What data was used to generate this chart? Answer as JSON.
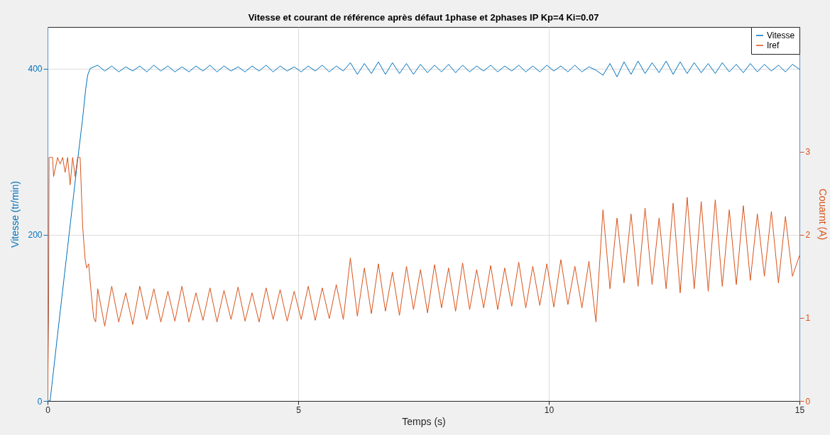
{
  "chart_data": {
    "type": "line",
    "title": "Vitesse et courant de référence  après défaut 1phase et 2phases IP Kp=4 Ki=0.07",
    "xlabel": "Temps (s)",
    "ylabel": "Vitesse (tr/min)",
    "y2label": "Couarnt (A)",
    "xlim": [
      0,
      15
    ],
    "xticks": [
      0,
      5,
      10,
      15
    ],
    "ylim": [
      0,
      450
    ],
    "yticks": [
      0,
      200,
      400
    ],
    "y2lim": [
      0,
      4.5
    ],
    "y2ticks": [
      0,
      1,
      2,
      3
    ],
    "grid": true,
    "legend": "top right",
    "series": [
      {
        "name": "Vitesse",
        "color": "#0072bd",
        "x": [
          0,
          0.05,
          0.2,
          0.4,
          0.6,
          0.7,
          0.76,
          0.8,
          0.85,
          1.0,
          1.14,
          1.28,
          1.42,
          1.56,
          1.7,
          1.84,
          1.98,
          2.12,
          2.26,
          2.4,
          2.54,
          2.68,
          2.82,
          2.96,
          3.1,
          3.24,
          3.38,
          3.52,
          3.66,
          3.8,
          3.94,
          4.08,
          4.22,
          4.36,
          4.5,
          4.64,
          4.78,
          4.92,
          5.06,
          5.2,
          5.34,
          5.48,
          5.62,
          5.76,
          5.9,
          6.04,
          6.18,
          6.32,
          6.46,
          6.6,
          6.74,
          6.88,
          7.02,
          7.16,
          7.3,
          7.44,
          7.58,
          7.72,
          7.86,
          8.0,
          8.14,
          8.28,
          8.42,
          8.56,
          8.7,
          8.84,
          8.98,
          9.12,
          9.26,
          9.4,
          9.54,
          9.68,
          9.82,
          9.96,
          10.1,
          10.24,
          10.38,
          10.52,
          10.66,
          10.8,
          10.94,
          11.08,
          11.22,
          11.36,
          11.5,
          11.64,
          11.78,
          11.92,
          12.06,
          12.2,
          12.34,
          12.48,
          12.62,
          12.76,
          12.9,
          13.04,
          13.18,
          13.32,
          13.46,
          13.6,
          13.74,
          13.88,
          14.02,
          14.16,
          14.3,
          14.44,
          14.58,
          14.72,
          14.86,
          15.0
        ],
        "values": [
          0,
          0,
          80,
          185,
          290,
          340,
          375,
          392,
          400,
          404,
          397,
          403,
          396,
          402,
          397,
          403,
          396,
          404,
          397,
          403,
          396,
          402,
          396,
          403,
          397,
          404,
          396,
          403,
          397,
          402,
          396,
          403,
          397,
          404,
          396,
          403,
          397,
          402,
          396,
          403,
          397,
          404,
          396,
          403,
          397,
          407,
          393,
          406,
          394,
          408,
          393,
          407,
          394,
          406,
          393,
          405,
          395,
          404,
          396,
          405,
          395,
          404,
          396,
          403,
          397,
          404,
          396,
          403,
          397,
          404,
          396,
          403,
          396,
          404,
          397,
          403,
          396,
          404,
          396,
          402,
          398,
          392,
          406,
          390,
          408,
          393,
          409,
          394,
          407,
          395,
          409,
          393,
          408,
          394,
          407,
          395,
          406,
          394,
          407,
          396,
          405,
          395,
          406,
          396,
          405,
          397,
          404,
          396,
          405,
          399
        ]
      },
      {
        "name": "Iref",
        "color": "#d95319",
        "axis": "y2",
        "x": [
          0,
          0.02,
          0.03,
          0.1,
          0.12,
          0.2,
          0.25,
          0.3,
          0.35,
          0.4,
          0.45,
          0.5,
          0.55,
          0.6,
          0.65,
          0.7,
          0.75,
          0.78,
          0.82,
          0.87,
          0.92,
          0.96,
          1.0,
          1.14,
          1.28,
          1.42,
          1.56,
          1.7,
          1.84,
          1.98,
          2.12,
          2.26,
          2.4,
          2.54,
          2.68,
          2.82,
          2.96,
          3.1,
          3.24,
          3.38,
          3.52,
          3.66,
          3.8,
          3.94,
          4.08,
          4.22,
          4.36,
          4.5,
          4.64,
          4.78,
          4.92,
          5.06,
          5.2,
          5.34,
          5.48,
          5.62,
          5.76,
          5.9,
          6.04,
          6.18,
          6.32,
          6.46,
          6.6,
          6.74,
          6.88,
          7.02,
          7.16,
          7.3,
          7.44,
          7.58,
          7.72,
          7.86,
          8.0,
          8.14,
          8.28,
          8.42,
          8.56,
          8.7,
          8.84,
          8.98,
          9.12,
          9.26,
          9.4,
          9.54,
          9.68,
          9.82,
          9.96,
          10.1,
          10.24,
          10.38,
          10.52,
          10.66,
          10.8,
          10.94,
          11.08,
          11.22,
          11.36,
          11.5,
          11.64,
          11.78,
          11.92,
          12.06,
          12.2,
          12.34,
          12.48,
          12.62,
          12.76,
          12.9,
          13.04,
          13.18,
          13.32,
          13.46,
          13.6,
          13.74,
          13.88,
          14.02,
          14.16,
          14.3,
          14.44,
          14.58,
          14.72,
          14.86,
          15.0
        ],
        "values": [
          0,
          1.0,
          2.93,
          2.93,
          2.7,
          2.93,
          2.85,
          2.93,
          2.75,
          2.93,
          2.6,
          2.93,
          2.7,
          2.93,
          2.93,
          2.1,
          1.7,
          1.6,
          1.65,
          1.3,
          1.0,
          0.95,
          1.35,
          0.9,
          1.38,
          0.95,
          1.3,
          0.92,
          1.38,
          0.98,
          1.35,
          0.95,
          1.32,
          0.96,
          1.38,
          0.95,
          1.3,
          0.97,
          1.36,
          0.95,
          1.33,
          0.98,
          1.37,
          0.96,
          1.3,
          0.95,
          1.36,
          0.98,
          1.34,
          0.96,
          1.32,
          0.98,
          1.38,
          0.97,
          1.36,
          0.99,
          1.4,
          0.98,
          1.72,
          1.02,
          1.6,
          1.05,
          1.65,
          1.08,
          1.55,
          1.03,
          1.62,
          1.1,
          1.58,
          1.06,
          1.64,
          1.12,
          1.6,
          1.08,
          1.66,
          1.1,
          1.58,
          1.12,
          1.63,
          1.1,
          1.6,
          1.14,
          1.67,
          1.12,
          1.62,
          1.15,
          1.65,
          1.13,
          1.7,
          1.16,
          1.62,
          1.12,
          1.68,
          0.95,
          2.3,
          1.35,
          2.2,
          1.42,
          2.25,
          1.38,
          2.32,
          1.4,
          2.2,
          1.35,
          2.38,
          1.3,
          2.45,
          1.35,
          2.4,
          1.32,
          2.42,
          1.38,
          2.3,
          1.4,
          2.35,
          1.45,
          2.25,
          1.5,
          2.28,
          1.42,
          2.22,
          1.5,
          1.75
        ]
      }
    ]
  }
}
